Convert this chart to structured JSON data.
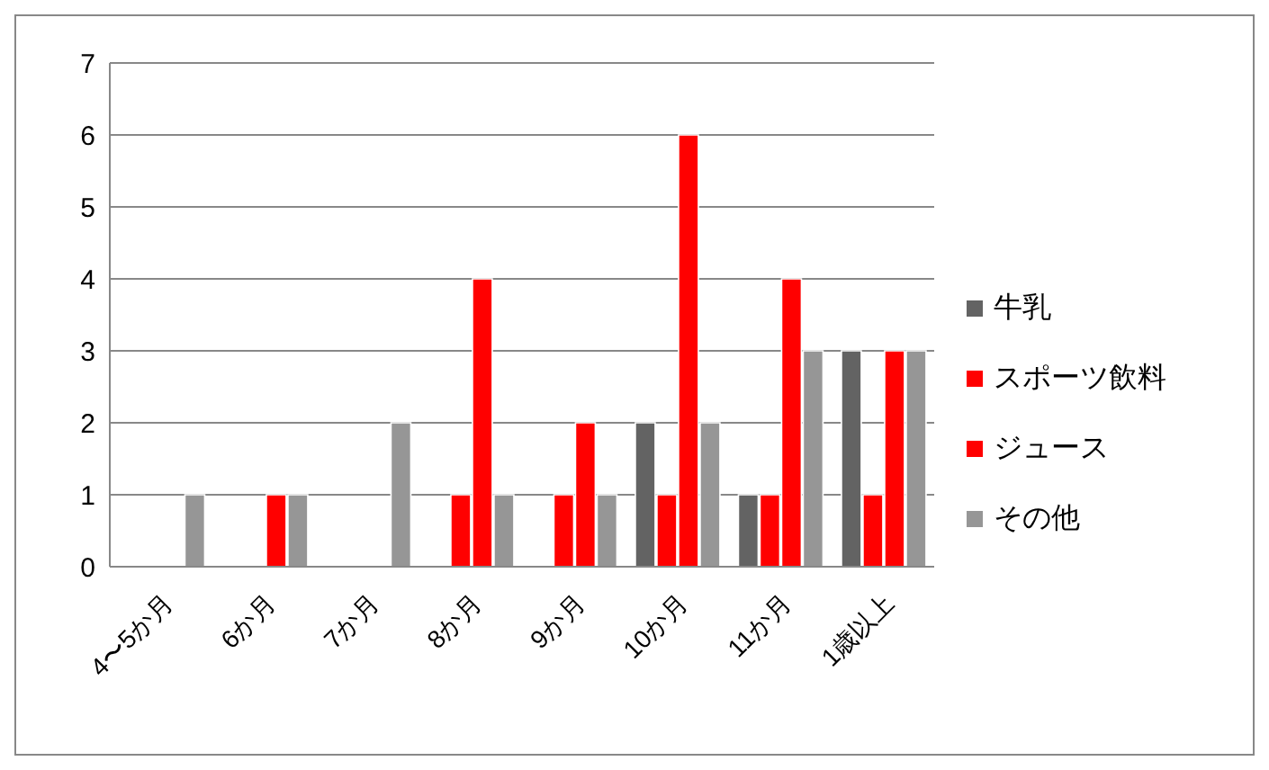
{
  "chart_data": {
    "type": "bar",
    "categories": [
      "4〜5か月",
      "6か月",
      "7か月",
      "8か月",
      "9か月",
      "10か月",
      "11か月",
      "1歳以上"
    ],
    "series": [
      {
        "name": "牛乳",
        "color": "#636363",
        "values": [
          0,
          0,
          0,
          0,
          0,
          2,
          1,
          3
        ]
      },
      {
        "name": "スポーツ飲料",
        "color": "#ff0000",
        "values": [
          0,
          0,
          0,
          1,
          1,
          1,
          1,
          1
        ]
      },
      {
        "name": "ジュース",
        "color": "#ff0000",
        "values": [
          0,
          1,
          0,
          4,
          2,
          6,
          4,
          3
        ]
      },
      {
        "name": "その他",
        "color": "#969696",
        "values": [
          1,
          1,
          2,
          1,
          1,
          2,
          3,
          3
        ]
      }
    ],
    "ylim": [
      0,
      7
    ],
    "yticks": [
      0,
      1,
      2,
      3,
      4,
      5,
      6,
      7
    ],
    "grid": "y",
    "legend": "right"
  }
}
